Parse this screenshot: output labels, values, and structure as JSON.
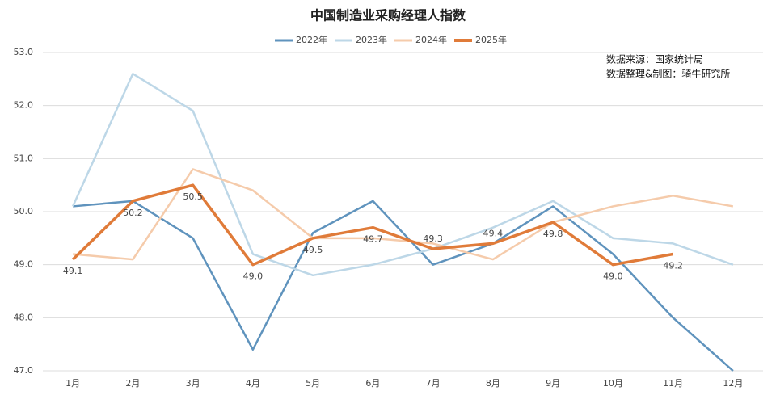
{
  "chart_data": {
    "type": "line",
    "title": "中国制造业采购经理人指数",
    "annotations": [
      "数据来源：国家统计局",
      "数据整理&制图：骑牛研究所"
    ],
    "categories": [
      "1月",
      "2月",
      "3月",
      "4月",
      "5月",
      "6月",
      "7月",
      "8月",
      "9月",
      "10月",
      "11月",
      "12月"
    ],
    "series": [
      {
        "name": "2022年",
        "color": "#5f93bd",
        "values": [
          50.1,
          50.2,
          49.5,
          47.4,
          49.6,
          50.2,
          49.0,
          49.4,
          50.1,
          49.2,
          48.0,
          47.0
        ]
      },
      {
        "name": "2023年",
        "color": "#bdd7e7",
        "values": [
          50.1,
          52.6,
          51.9,
          49.2,
          48.8,
          49.0,
          49.3,
          49.7,
          50.2,
          49.5,
          49.4,
          49.0
        ]
      },
      {
        "name": "2024年",
        "color": "#f5cbab",
        "values": [
          49.2,
          49.1,
          50.8,
          50.4,
          49.5,
          49.5,
          49.4,
          49.1,
          49.8,
          50.1,
          50.3,
          50.1
        ]
      },
      {
        "name": "2025年",
        "color": "#e07b39",
        "values": [
          49.1,
          50.2,
          50.5,
          49.0,
          49.5,
          49.7,
          49.3,
          49.4,
          49.8,
          49.0,
          49.2,
          null
        ],
        "value_labels": [
          "49.1",
          "50.2",
          "50.5",
          "49.0",
          "49.5",
          "49.7",
          "49.3",
          "49.4",
          "49.8",
          "49.0",
          "49.2",
          null
        ]
      }
    ],
    "ylim": [
      47,
      53
    ],
    "yticks": [
      {
        "value": 47,
        "label": "47.0"
      },
      {
        "value": 48,
        "label": "48.0"
      },
      {
        "value": 49,
        "label": "49.0"
      },
      {
        "value": 50,
        "label": "50.0"
      },
      {
        "value": 51,
        "label": "51.0"
      },
      {
        "value": 52,
        "label": "52.0"
      },
      {
        "value": 53,
        "label": "53.0"
      }
    ],
    "grid": true,
    "legend": "top"
  }
}
